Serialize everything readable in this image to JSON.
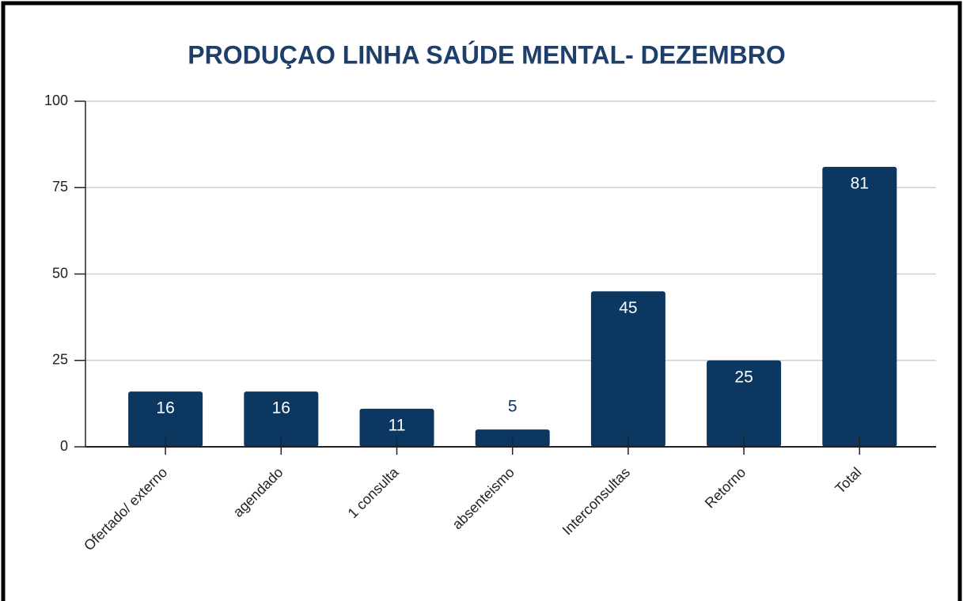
{
  "chart_data": {
    "type": "bar",
    "title": "PRODUÇAO LINHA SAÚDE MENTAL- DEZEMBRO",
    "categories": [
      "Ofertado/ externo",
      "agendado",
      "1 consulta",
      "absenteismo",
      "Interconsultas",
      "Retorno",
      "Total"
    ],
    "values": [
      16,
      16,
      11,
      5,
      45,
      25,
      81
    ],
    "color": "#0b3761",
    "ylim": [
      0,
      100
    ],
    "yticks": [
      0,
      25,
      50,
      75,
      100
    ],
    "grid": true
  }
}
